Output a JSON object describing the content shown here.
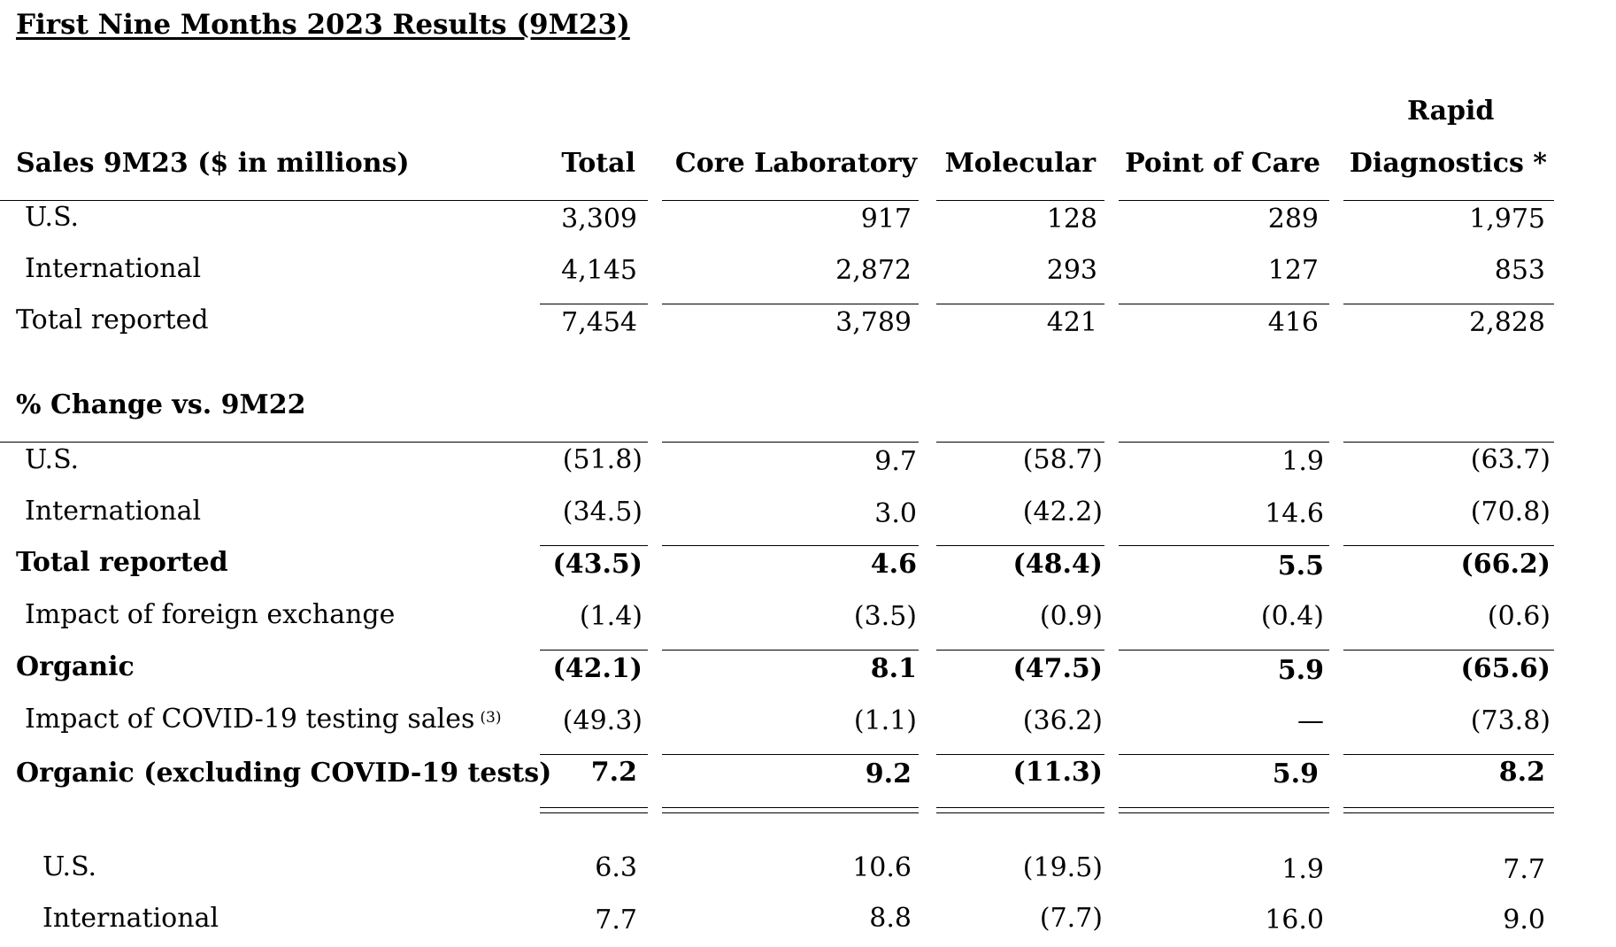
{
  "title": "First Nine Months 2023 Results (9M23)",
  "header": {
    "label": "Sales 9M23 ($ in millions)",
    "columns": [
      "Total",
      "Core Laboratory",
      "Molecular",
      "Point of Care",
      "Rapid Diagnostics *"
    ],
    "rapid_line1": "Rapid",
    "rapid_line2": "Diagnostics *"
  },
  "sales": [
    {
      "label": "U.S.",
      "values": [
        "3,309",
        "917",
        "128",
        "289",
        "1,975"
      ]
    },
    {
      "label": "International",
      "values": [
        "4,145",
        "2,872",
        "293",
        "127",
        "853"
      ]
    },
    {
      "label": "Total reported",
      "values": [
        "7,454",
        "3,789",
        "421",
        "416",
        "2,828"
      ]
    }
  ],
  "change_header": "% Change vs. 9M22",
  "change": [
    {
      "label": "U.S.",
      "values": [
        "(51.8)",
        "9.7",
        "(58.7)",
        "1.9",
        "(63.7)"
      ]
    },
    {
      "label": "International",
      "values": [
        "(34.5)",
        "3.0",
        "(42.2)",
        "14.6",
        "(70.8)"
      ]
    },
    {
      "label": "Total reported",
      "values": [
        "(43.5)",
        "4.6",
        "(48.4)",
        "5.5",
        "(66.2)"
      ]
    },
    {
      "label": "Impact of foreign exchange",
      "values": [
        "(1.4)",
        "(3.5)",
        "(0.9)",
        "(0.4)",
        "(0.6)"
      ]
    },
    {
      "label": "Organic",
      "values": [
        "(42.1)",
        "8.1",
        "(47.5)",
        "5.9",
        "(65.6)"
      ]
    },
    {
      "label": "Impact of COVID-19 testing sales",
      "footnote": "(3)",
      "values": [
        "(49.3)",
        "(1.1)",
        "(36.2)",
        "—",
        "(73.8)"
      ]
    },
    {
      "label": "Organic (excluding COVID-19 tests)",
      "values": [
        "7.2",
        "9.2",
        "(11.3)",
        "5.9",
        "8.2"
      ]
    },
    {
      "label": "U.S.",
      "values": [
        "6.3",
        "10.6",
        "(19.5)",
        "1.9",
        "7.7"
      ]
    },
    {
      "label": "International",
      "values": [
        "7.7",
        "8.8",
        "(7.7)",
        "16.0",
        "9.0"
      ]
    }
  ]
}
